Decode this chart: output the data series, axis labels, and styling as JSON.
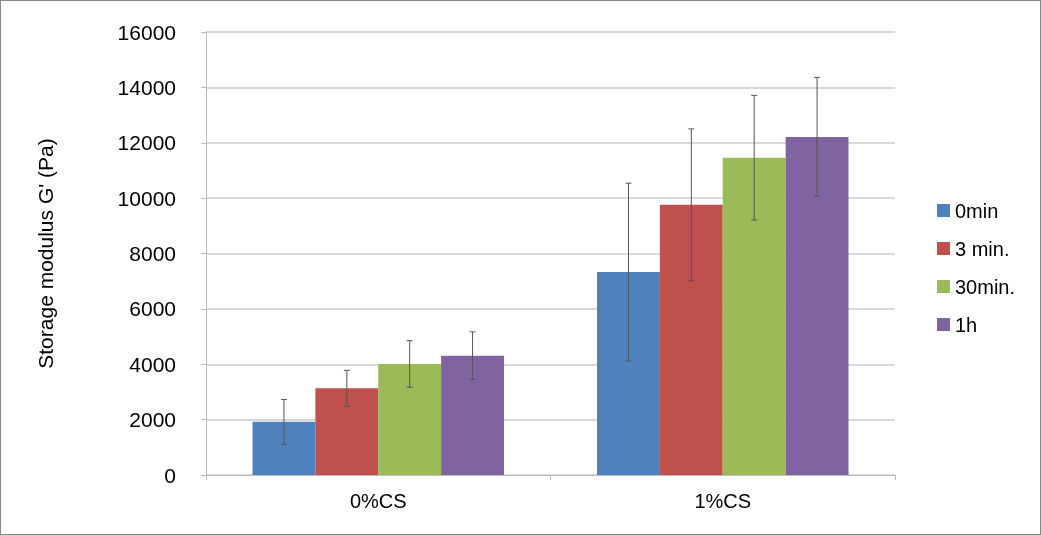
{
  "chart_data": {
    "type": "bar",
    "ylabel": "Storage modulus G' (Pa)",
    "categories": [
      "0%CS",
      "1%CS"
    ],
    "series": [
      {
        "name": "0min",
        "color": "#4f81bd",
        "values": [
          1920,
          7330
        ],
        "errors": [
          810,
          3210
        ]
      },
      {
        "name": "3 min.",
        "color": "#c0504d",
        "values": [
          3130,
          9760
        ],
        "errors": [
          650,
          2740
        ]
      },
      {
        "name": "30min.",
        "color": "#9bbb59",
        "values": [
          4010,
          11460
        ],
        "errors": [
          840,
          2250
        ]
      },
      {
        "name": "1h",
        "color": "#8064a2",
        "values": [
          4310,
          12210
        ],
        "errors": [
          860,
          2150
        ]
      }
    ],
    "ylim": [
      0,
      16000
    ],
    "yticks": [
      0,
      2000,
      4000,
      6000,
      8000,
      10000,
      12000,
      14000,
      16000
    ],
    "grid": "y",
    "legend": "right"
  }
}
